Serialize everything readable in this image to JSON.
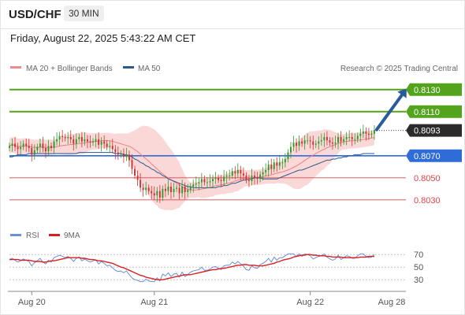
{
  "header": {
    "symbol": "USD/CHF",
    "interval": "30 MIN"
  },
  "datetime": "Friday, August 22, 2025 5:43:22 AM CET",
  "legend": {
    "ma_bb": "MA 20 + Bollinger Bands",
    "ma50": "MA 50",
    "credit": "Research © 2025 Trading Central",
    "rsi": "RSI",
    "ma9": "9MA"
  },
  "colors": {
    "green": "#53a31c",
    "blue": "#2f6cd8",
    "red": "#e0464a",
    "arrow": "#2a5b9a",
    "bbfill": "#fbd8d8",
    "ma20": "#ef7f7f",
    "ma50": "#2d5a8e",
    "rsi": "#6b8fd6",
    "ma9": "#d81e1e",
    "candle_up": "#2e9a2e",
    "candle_down": "#d13030",
    "current_bg": "#2b2b2b"
  },
  "chart_data": {
    "type": "candlestick",
    "price_range": [
      0.8022,
      0.8137
    ],
    "x_labels": [
      "Aug 20",
      "Aug 21",
      "Aug 22",
      "Aug 28"
    ],
    "levels": [
      {
        "label": "0.8130",
        "value": 0.813,
        "kind": "resistance"
      },
      {
        "label": "0.8110",
        "value": 0.811,
        "kind": "resistance"
      },
      {
        "label": "0.8093",
        "value": 0.8093,
        "kind": "current"
      },
      {
        "label": "0.8070",
        "value": 0.807,
        "kind": "pivot"
      },
      {
        "label": "0.8050",
        "value": 0.805,
        "kind": "support"
      },
      {
        "label": "0.8030",
        "value": 0.803,
        "kind": "support"
      }
    ],
    "close": [
      0.8079,
      0.8081,
      0.8078,
      0.8076,
      0.8078,
      0.8081,
      0.8079,
      0.8077,
      0.8071,
      0.8075,
      0.8078,
      0.8081,
      0.8077,
      0.8074,
      0.8079,
      0.8077,
      0.8083,
      0.8085,
      0.8088,
      0.8087,
      0.8086,
      0.8087,
      0.8085,
      0.8081,
      0.8085,
      0.8087,
      0.8083,
      0.8085,
      0.8083,
      0.8082,
      0.8083,
      0.8085,
      0.808,
      0.8083,
      0.8081,
      0.8078,
      0.8079,
      0.8076,
      0.8073,
      0.8071,
      0.8072,
      0.8069,
      0.8071,
      0.8066,
      0.8058,
      0.8052,
      0.8048,
      0.8041,
      0.8039,
      0.8041,
      0.8038,
      0.8036,
      0.8034,
      0.8038,
      0.8032,
      0.804,
      0.8038,
      0.8042,
      0.8037,
      0.804,
      0.8041,
      0.8036,
      0.8042,
      0.8037,
      0.8039,
      0.8042,
      0.8044,
      0.8045,
      0.8046,
      0.8049,
      0.8046,
      0.8046,
      0.8047,
      0.8049,
      0.805,
      0.8048,
      0.8047,
      0.8051,
      0.8052,
      0.8052,
      0.8056,
      0.8054,
      0.8057,
      0.8054,
      0.8052,
      0.8048,
      0.8047,
      0.8052,
      0.805,
      0.8049,
      0.8053,
      0.8055,
      0.8057,
      0.8062,
      0.8058,
      0.8064,
      0.8061,
      0.8064,
      0.8064,
      0.8067,
      0.8073,
      0.8078,
      0.8082,
      0.8079,
      0.8083,
      0.8081,
      0.8084,
      0.8084,
      0.8083,
      0.808,
      0.8081,
      0.8083,
      0.8084,
      0.8087,
      0.8084,
      0.8082,
      0.8081,
      0.8082,
      0.8087,
      0.8083,
      0.8085,
      0.8087,
      0.8087,
      0.8085,
      0.8085,
      0.8088,
      0.809,
      0.8092,
      0.809,
      0.8089,
      0.809,
      0.8093
    ],
    "ma50": [
      0.8069,
      0.8069,
      0.807,
      0.8071,
      0.8071,
      0.8071,
      0.8071,
      0.8072,
      0.8072,
      0.8072,
      0.8072,
      0.8072,
      0.8072,
      0.8072,
      0.8072,
      0.8072,
      0.8072,
      0.8072,
      0.8072,
      0.8072,
      0.8072,
      0.8072,
      0.8072,
      0.8072,
      0.8072,
      0.8073,
      0.8073,
      0.8073,
      0.8073,
      0.8073,
      0.8073,
      0.8073,
      0.8073,
      0.8073,
      0.8073,
      0.8073,
      0.8073,
      0.8073,
      0.8072,
      0.8072,
      0.8072,
      0.8071,
      0.8071,
      0.807,
      0.8069,
      0.8067,
      0.8066,
      0.8064,
      0.8063,
      0.8061,
      0.806,
      0.8058,
      0.8057,
      0.8055,
      0.8054,
      0.8052,
      0.8051,
      0.8049,
      0.8048,
      0.8047,
      0.8046,
      0.8045,
      0.8044,
      0.8043,
      0.8042,
      0.8042,
      0.8041,
      0.8041,
      0.8041,
      0.8041,
      0.8041,
      0.8041,
      0.8041,
      0.8041,
      0.8041,
      0.8042,
      0.8042,
      0.8043,
      0.8043,
      0.8044,
      0.8045,
      0.8045,
      0.8046,
      0.8047,
      0.8048,
      0.8048,
      0.8049,
      0.8049,
      0.805,
      0.805,
      0.805,
      0.8049,
      0.8049,
      0.8049,
      0.8049,
      0.8049,
      0.8049,
      0.805,
      0.8051,
      0.8052,
      0.8053,
      0.8054,
      0.8055,
      0.8056,
      0.8057,
      0.8057,
      0.8058,
      0.8059,
      0.806,
      0.8061,
      0.8062,
      0.8063,
      0.8064,
      0.8065,
      0.8066,
      0.8066,
      0.8067,
      0.8067,
      0.8068,
      0.8068,
      0.8069,
      0.8069,
      0.807,
      0.807,
      0.8071,
      0.8071,
      0.8071,
      0.8072,
      0.8072,
      0.8072,
      0.8072,
      0.8072
    ],
    "rsi_axis": {
      "ticks": [
        70,
        50,
        30
      ],
      "range": [
        24,
        74
      ]
    },
    "rsi": [
      62,
      64,
      61,
      58,
      60,
      63,
      61,
      59,
      52,
      57,
      60,
      64,
      58,
      55,
      61,
      58,
      65,
      67,
      69,
      67,
      65,
      67,
      64,
      59,
      64,
      66,
      60,
      63,
      60,
      58,
      60,
      62,
      55,
      59,
      56,
      52,
      53,
      49,
      45,
      43,
      44,
      41,
      44,
      38,
      33,
      30,
      29,
      27,
      27,
      31,
      28,
      27,
      27,
      33,
      28,
      39,
      36,
      41,
      35,
      39,
      40,
      34,
      42,
      35,
      38,
      42,
      44,
      45,
      46,
      50,
      45,
      45,
      47,
      50,
      51,
      48,
      46,
      52,
      53,
      53,
      58,
      55,
      59,
      55,
      52,
      46,
      45,
      52,
      49,
      48,
      54,
      56,
      59,
      64,
      58,
      66,
      61,
      65,
      65,
      68,
      71,
      71,
      71,
      67,
      71,
      67,
      71,
      70,
      68,
      63,
      65,
      67,
      68,
      71,
      66,
      63,
      61,
      63,
      69,
      62,
      65,
      68,
      67,
      64,
      64,
      68,
      71,
      71,
      67,
      65,
      66,
      70
    ],
    "rsi_ma9": [
      62,
      62,
      62,
      62,
      61,
      61,
      61,
      61,
      60,
      59,
      59,
      59,
      58,
      58,
      59,
      60,
      60,
      61,
      62,
      63,
      64,
      65,
      65,
      65,
      65,
      65,
      64,
      64,
      63,
      62,
      62,
      61,
      60,
      60,
      59,
      58,
      57,
      56,
      54,
      52,
      50,
      49,
      47,
      45,
      43,
      41,
      39,
      37,
      36,
      34,
      33,
      32,
      31,
      30,
      30,
      30,
      31,
      32,
      33,
      34,
      35,
      36,
      37,
      38,
      38,
      38,
      39,
      40,
      41,
      42,
      43,
      44,
      45,
      46,
      46,
      47,
      48,
      48,
      49,
      50,
      51,
      52,
      53,
      53,
      54,
      54,
      53,
      53,
      53,
      52,
      52,
      52,
      53,
      54,
      55,
      56,
      58,
      59,
      61,
      62,
      63,
      64,
      66,
      67,
      68,
      69,
      69,
      70,
      70,
      69,
      69,
      68,
      68,
      68,
      67,
      67,
      66,
      66,
      66,
      66,
      65,
      65,
      65,
      65,
      65,
      65,
      66,
      66,
      66,
      67,
      67,
      67
    ]
  }
}
